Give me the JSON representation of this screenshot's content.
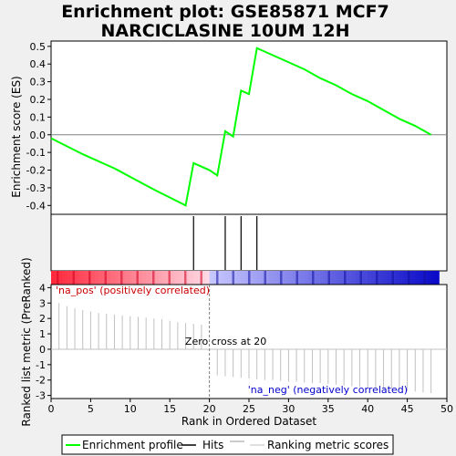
{
  "chart_data": {
    "type": "line",
    "title_line1": "Enrichment plot: GSE85871 MCF7",
    "title_line2": "NARCICLASINE 10UM 12H",
    "xlabel": "Rank in Ordered Dataset",
    "ylabel_top": "Enrichment score (ES)",
    "ylabel_bottom": "Ranked list metric (PreRanked)",
    "xlim": [
      0,
      50
    ],
    "ylim_top": [
      -0.45,
      0.53
    ],
    "ylim_bottom": [
      -3.2,
      4.2
    ],
    "x_ticks": [
      0,
      5,
      10,
      15,
      20,
      25,
      30,
      35,
      40,
      45,
      50
    ],
    "y_ticks_top": [
      -0.4,
      -0.3,
      -0.2,
      -0.1,
      0.0,
      0.1,
      0.2,
      0.3,
      0.4,
      0.5
    ],
    "y_tick_labels_top": [
      "-0.4",
      "-0.3",
      "-0.2",
      "-0.1",
      "0.0",
      "0.1",
      "0.2",
      "0.3",
      "0.4",
      "0.5"
    ],
    "y_ticks_bottom": [
      -3,
      -2,
      -1,
      0,
      1,
      2,
      3,
      4
    ],
    "series": [
      {
        "name": "Enrichment profile",
        "color": "#00ff00",
        "x": [
          0,
          4,
          8,
          13,
          17,
          18,
          20,
          21,
          22,
          23,
          24,
          25,
          26,
          28,
          30,
          32,
          34,
          36,
          38,
          40,
          42,
          44,
          46,
          48
        ],
        "y": [
          -0.02,
          -0.11,
          -0.19,
          -0.31,
          -0.4,
          -0.16,
          -0.2,
          -0.23,
          0.02,
          -0.01,
          0.25,
          0.23,
          0.49,
          0.45,
          0.41,
          0.37,
          0.32,
          0.28,
          0.23,
          0.19,
          0.14,
          0.09,
          0.05,
          0.0
        ]
      }
    ],
    "hits": [
      18,
      22,
      24,
      26
    ],
    "ranking_metric": {
      "x": [
        1,
        2,
        3,
        4,
        5,
        6,
        7,
        8,
        9,
        10,
        11,
        12,
        13,
        14,
        15,
        16,
        17,
        18,
        19,
        21,
        22,
        23,
        24,
        25,
        26,
        27,
        28,
        29,
        30,
        31,
        32,
        33,
        34,
        35,
        36,
        37,
        38,
        39,
        40,
        41,
        42,
        43,
        44,
        45,
        46,
        47,
        48
      ],
      "y": [
        3.0,
        2.8,
        2.65,
        2.55,
        2.45,
        2.35,
        2.3,
        2.25,
        2.2,
        2.15,
        2.1,
        2.05,
        2.0,
        1.95,
        1.85,
        1.75,
        1.7,
        1.65,
        1.6,
        -1.7,
        -1.75,
        -1.8,
        -1.85,
        -1.9,
        -1.95,
        -2.0,
        -2.0,
        -2.05,
        -2.1,
        -2.1,
        -2.15,
        -2.2,
        -2.2,
        -2.25,
        -2.3,
        -2.35,
        -2.4,
        -2.45,
        -2.5,
        -2.5,
        -2.55,
        -2.6,
        -2.65,
        -2.7,
        -2.75,
        -2.8,
        -2.85
      ]
    },
    "zero_cross": 20,
    "zero_cross_label": "Zero cross at 20",
    "pos_label": "'na_pos' (positively correlated)",
    "neg_label": "'na_neg' (negatively correlated)",
    "legend": {
      "position": "bottom",
      "entries": [
        "Enrichment profile",
        "Hits",
        "Ranking metric scores"
      ]
    },
    "colors": {
      "profile": "#00ff00",
      "hits": "#000000",
      "metric": "#c0c0c0",
      "pos_text": "#cc0000",
      "neg_text": "#0000cc",
      "zero_line": "#808080"
    }
  }
}
